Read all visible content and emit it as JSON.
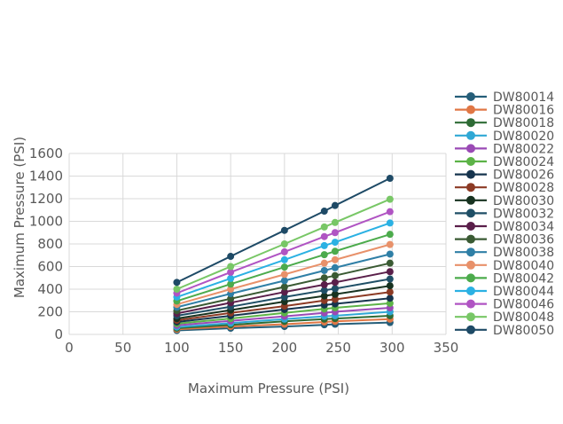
{
  "chart_data": {
    "type": "line",
    "xlabel": "Maximum Pressure (PSI)",
    "ylabel": "Maximum Pressure (PSI)",
    "xlim": [
      0,
      350
    ],
    "ylim": [
      0,
      1600
    ],
    "x_ticks": [
      "0",
      "50",
      "100",
      "150",
      "200",
      "250",
      "300",
      "350"
    ],
    "y_ticks": [
      "0",
      "200",
      "400",
      "600",
      "800",
      "1000",
      "1200",
      "1400",
      "1600"
    ],
    "grid": "horizontal and vertical",
    "legend_position": "right",
    "x": [
      100,
      150,
      200,
      237,
      247,
      298
    ],
    "series": [
      {
        "name": "DW80014",
        "color": "#255e79",
        "values": [
          35,
          55,
          70,
          85,
          90,
          105
        ]
      },
      {
        "name": "DW80016",
        "color": "#e07745",
        "values": [
          45,
          70,
          90,
          110,
          115,
          135
        ]
      },
      {
        "name": "DW80018",
        "color": "#2e6b35",
        "values": [
          55,
          85,
          115,
          135,
          140,
          165
        ]
      },
      {
        "name": "DW80020",
        "color": "#2fa8d5",
        "values": [
          65,
          100,
          135,
          160,
          165,
          200
        ]
      },
      {
        "name": "DW80022",
        "color": "#9a4ab5",
        "values": [
          80,
          120,
          160,
          190,
          200,
          235
        ]
      },
      {
        "name": "DW80024",
        "color": "#5cb347",
        "values": [
          95,
          140,
          190,
          225,
          235,
          275
        ]
      },
      {
        "name": "DW80026",
        "color": "#16344e",
        "values": [
          110,
          165,
          220,
          260,
          270,
          320
        ]
      },
      {
        "name": "DW80028",
        "color": "#8c3a24",
        "values": [
          125,
          190,
          250,
          300,
          310,
          375
        ]
      },
      {
        "name": "DW80030",
        "color": "#173220",
        "values": [
          140,
          215,
          290,
          340,
          355,
          430
        ]
      },
      {
        "name": "DW80032",
        "color": "#1f4f66",
        "values": [
          165,
          245,
          330,
          390,
          405,
          490
        ]
      },
      {
        "name": "DW80034",
        "color": "#5a1f4a",
        "values": [
          185,
          280,
          375,
          440,
          460,
          555
        ]
      },
      {
        "name": "DW80036",
        "color": "#3a5a33",
        "values": [
          210,
          315,
          420,
          500,
          520,
          630
        ]
      },
      {
        "name": "DW80038",
        "color": "#2f7fa6",
        "values": [
          240,
          360,
          475,
          565,
          590,
          710
        ]
      },
      {
        "name": "DW80040",
        "color": "#e8916a",
        "values": [
          265,
          400,
          530,
          630,
          660,
          795
        ]
      },
      {
        "name": "DW80042",
        "color": "#4cab4c",
        "values": [
          295,
          445,
          595,
          705,
          735,
          885
        ]
      },
      {
        "name": "DW80044",
        "color": "#2bb1e3",
        "values": [
          330,
          495,
          660,
          785,
          815,
          985
        ]
      },
      {
        "name": "DW80046",
        "color": "#b054c3",
        "values": [
          365,
          550,
          730,
          865,
          900,
          1085
        ]
      },
      {
        "name": "DW80048",
        "color": "#78c766",
        "values": [
          400,
          600,
          800,
          950,
          990,
          1195
        ]
      },
      {
        "name": "DW80050",
        "color": "#1e4a66",
        "values": [
          460,
          690,
          920,
          1090,
          1140,
          1380
        ]
      }
    ]
  }
}
